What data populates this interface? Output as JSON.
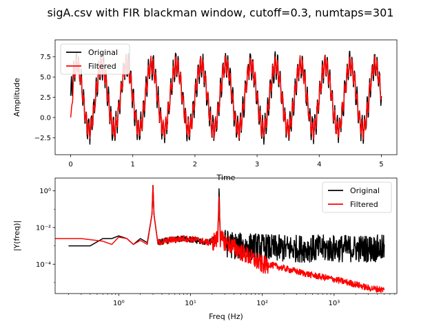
{
  "figure": {
    "suptitle": "sigA.csv with FIR blackman window, cutoff=0.3, numtaps=301"
  },
  "chart_data": [
    {
      "type": "line",
      "title": "",
      "xlabel": "Time",
      "ylabel": "Amplitude",
      "xlim": [
        -0.25,
        5.25
      ],
      "ylim": [
        -4.6,
        9.6
      ],
      "xticks": [
        0,
        1,
        2,
        3,
        4,
        5
      ],
      "xtick_labels": [
        "0",
        "1",
        "2",
        "3",
        "4",
        "5"
      ],
      "yticks": [
        -2.5,
        0.0,
        2.5,
        5.0,
        7.5
      ],
      "ytick_labels": [
        "−2.5",
        "0.0",
        "2.5",
        "5.0",
        "7.5"
      ],
      "legend_position": "top-left",
      "grid": false,
      "series": [
        {
          "name": "Original",
          "color": "#000000",
          "description_model": {
            "offset": 2.5,
            "main_freq_hz": 2.5,
            "main_amp": 4.0,
            "hf_freq_hz": 25,
            "hf_amp": 1.3,
            "noise_amp": 0.6,
            "t_start": 0,
            "t_end": 5
          }
        },
        {
          "name": "Filtered",
          "color": "#ff0000",
          "description_model": {
            "offset": 2.5,
            "main_freq_hz": 2.5,
            "main_amp": 4.0,
            "hf_freq_hz": 25,
            "hf_amp": 1.0,
            "noise_amp": 0.25,
            "t_start": 0,
            "t_end": 5,
            "start_value": 0.0
          }
        }
      ]
    },
    {
      "type": "line",
      "title": "",
      "xlabel": "Freq (Hz)",
      "ylabel": "|Y(freq)|",
      "xscale": "log",
      "yscale": "log",
      "xlim": [
        0.13,
        7500
      ],
      "ylim": [
        2.5e-06,
        5
      ],
      "xticks": [
        1,
        10,
        100,
        1000
      ],
      "xtick_labels": [
        "10⁰",
        "10¹",
        "10²",
        "10³"
      ],
      "yticks": [
        0.0001,
        0.01,
        1
      ],
      "ytick_labels": [
        "10⁻⁴",
        "10⁻²",
        "10⁰"
      ],
      "legend_position": "top-right",
      "grid": false,
      "series": [
        {
          "name": "Original",
          "color": "#000000",
          "x": [
            0.2,
            0.4,
            0.6,
            0.8,
            1.0,
            1.3,
            1.6,
            2.0,
            2.5,
            2.9,
            3.0,
            3.1,
            3.5,
            5,
            8,
            12,
            18,
            24,
            25,
            26,
            35,
            50,
            80,
            150,
            300,
            600,
            1000,
            2000,
            5000
          ],
          "y": [
            0.001,
            0.001,
            0.0025,
            0.0025,
            0.0035,
            0.0025,
            0.0012,
            0.0025,
            0.0015,
            0.05,
            2.0,
            0.05,
            0.0015,
            0.002,
            0.0025,
            0.002,
            0.0015,
            0.003,
            0.9,
            0.003,
            0.002,
            0.0015,
            0.0015,
            0.0012,
            0.0012,
            0.0012,
            0.0012,
            0.0012,
            0.0012
          ]
        },
        {
          "name": "Filtered",
          "color": "#ff0000",
          "x": [
            0.13,
            0.3,
            0.6,
            0.8,
            1.0,
            1.3,
            1.6,
            2.0,
            2.5,
            2.9,
            3.0,
            3.1,
            3.5,
            5,
            8,
            12,
            18,
            24,
            25,
            26,
            35,
            50,
            80,
            100,
            150,
            200,
            300,
            500,
            1000,
            2000,
            3000,
            5000
          ],
          "y": [
            0.0025,
            0.0025,
            0.0018,
            0.0012,
            0.003,
            0.0025,
            0.0012,
            0.002,
            0.0012,
            0.05,
            2.0,
            0.05,
            0.0015,
            0.002,
            0.0025,
            0.0022,
            0.0015,
            0.003,
            0.9,
            0.003,
            0.0015,
            0.0006,
            0.0002,
            0.00012,
            8e-05,
            6e-05,
            4e-05,
            2.5e-05,
            1.5e-05,
            8e-06,
            5e-06,
            4e-06
          ]
        }
      ]
    }
  ]
}
